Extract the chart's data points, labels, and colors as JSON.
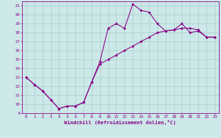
{
  "xlabel": "Windchill (Refroidissement éolien,°C)",
  "bg_color": "#cce8e8",
  "line_color": "#880088",
  "grid_color": "#aacccc",
  "xlim": [
    -0.5,
    23.5
  ],
  "ylim": [
    9,
    21.5
  ],
  "x_ticks": [
    0,
    1,
    2,
    3,
    4,
    5,
    6,
    7,
    8,
    9,
    10,
    11,
    12,
    13,
    14,
    15,
    16,
    17,
    18,
    19,
    20,
    21,
    22,
    23
  ],
  "y_ticks": [
    9,
    10,
    11,
    12,
    13,
    14,
    15,
    16,
    17,
    18,
    19,
    20,
    21
  ],
  "series1_x": [
    0,
    1,
    2,
    3,
    4,
    5,
    6,
    7,
    8,
    9,
    10,
    11,
    12,
    13,
    14,
    15,
    16,
    17,
    18,
    19,
    20,
    21,
    22,
    23
  ],
  "series1_y": [
    13,
    12.2,
    11.5,
    10.5,
    9.5,
    9.8,
    9.8,
    10.2,
    12.5,
    14.8,
    18.5,
    19.0,
    18.5,
    21.2,
    20.5,
    20.3,
    19.0,
    18.2,
    18.3,
    19.0,
    18.0,
    18.2,
    17.5,
    17.5
  ],
  "series2_x": [
    0,
    1,
    2,
    3,
    4,
    5,
    6,
    7,
    8,
    9,
    10,
    11,
    12,
    13,
    14,
    15,
    16,
    17,
    18,
    19,
    20,
    21,
    22,
    23
  ],
  "series2_y": [
    13,
    12.2,
    11.5,
    10.5,
    9.5,
    9.8,
    9.8,
    10.2,
    12.5,
    14.5,
    15.0,
    15.5,
    16.0,
    16.5,
    17.0,
    17.5,
    18.0,
    18.2,
    18.3,
    18.5,
    18.5,
    18.3,
    17.5,
    17.5
  ],
  "marker_size": 1.8,
  "line_width": 0.8,
  "tick_fontsize": 4.5,
  "xlabel_fontsize": 5.2
}
